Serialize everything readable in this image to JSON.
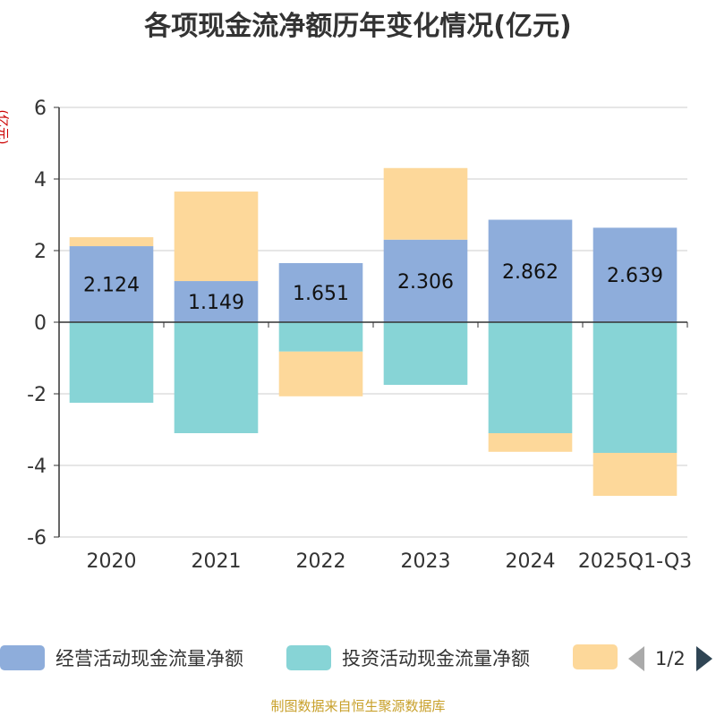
{
  "title": "各项现金流净额历年变化情况(亿元)",
  "unit_label": "(亿元)",
  "legend": {
    "items": [
      {
        "label": "经营活动现金流量净额",
        "color": "#8eaddb"
      },
      {
        "label": "投资活动现金流量净额",
        "color": "#87d4d6"
      },
      {
        "label": "",
        "color": "#fdd89a"
      }
    ],
    "pager_text": "1/2"
  },
  "source_note": "制图数据来自恒生聚源数据库",
  "chart_data": {
    "type": "bar",
    "stacked": true,
    "categories": [
      "2020",
      "2021",
      "2022",
      "2023",
      "2024",
      "2025Q1-Q3"
    ],
    "ylim": [
      -6,
      6
    ],
    "yticks": [
      "6",
      "4",
      "2",
      "0",
      "-2",
      "-4",
      "-6"
    ],
    "grid": true,
    "series": [
      {
        "name": "经营活动现金流量净额",
        "color": "#8eaddb",
        "values": [
          2.124,
          1.149,
          1.651,
          2.306,
          2.862,
          2.639
        ],
        "labels": [
          "2.124",
          "1.149",
          "1.651",
          "2.306",
          "2.862",
          "2.639"
        ]
      },
      {
        "color": "#87d4d6",
        "values": [
          -2.25,
          -3.1,
          -0.82,
          -1.75,
          -3.1,
          -3.65
        ]
      },
      {
        "color": "#fdd89a",
        "values": [
          0.25,
          2.5,
          -1.25,
          2.0,
          -0.52,
          -1.2
        ]
      }
    ]
  }
}
